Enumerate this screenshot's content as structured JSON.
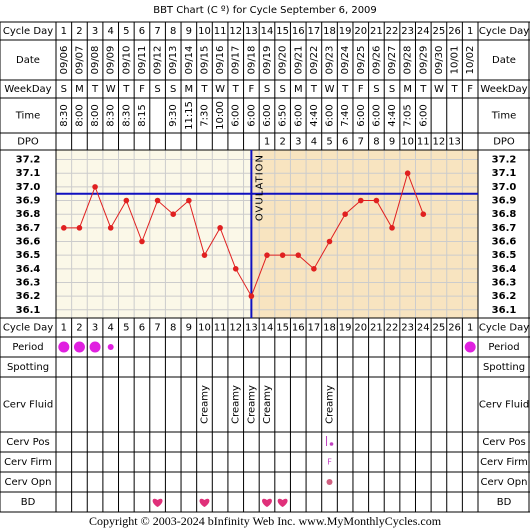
{
  "chart_data": {
    "type": "line",
    "title": "BBT Chart (C º) for Cycle September 6, 2009",
    "row_labels": [
      "Cycle Day",
      "Date",
      "WeekDay",
      "Time",
      "DPO",
      "Cycle Day",
      "Period",
      "Spotting",
      "Cerv Fluid",
      "Cerv Pos",
      "Cerv Firm",
      "Cerv Opn",
      "BD"
    ],
    "categories": [
      1,
      2,
      3,
      4,
      5,
      6,
      7,
      8,
      9,
      10,
      11,
      12,
      13,
      14,
      15,
      16,
      17,
      18,
      19,
      20,
      21,
      22,
      23,
      24,
      25,
      26,
      1
    ],
    "dates": [
      "09/06",
      "09/07",
      "09/08",
      "09/09",
      "09/10",
      "09/11",
      "09/12",
      "09/13",
      "09/14",
      "09/15",
      "09/16",
      "09/17",
      "09/18",
      "09/19",
      "09/20",
      "09/21",
      "09/22",
      "09/23",
      "09/24",
      "09/25",
      "09/26",
      "09/27",
      "09/28",
      "09/29",
      "09/30",
      "10/01",
      "10/02"
    ],
    "weekdays": [
      "S",
      "M",
      "T",
      "W",
      "T",
      "F",
      "S",
      "S",
      "M",
      "T",
      "W",
      "T",
      "F",
      "S",
      "S",
      "M",
      "T",
      "W",
      "T",
      "F",
      "S",
      "S",
      "M",
      "T",
      "W",
      "T",
      "F"
    ],
    "times": [
      "8:30",
      "8:00",
      "8:00",
      "8:30",
      "8:30",
      "8:15",
      null,
      "9:30",
      "11:15",
      "7:30",
      "10:00",
      "6:00",
      "6:00",
      "6:00",
      "6:50",
      "6:00",
      "4:40",
      "6:00",
      "7:40",
      "6:00",
      "6:00",
      "4:40",
      "7:05",
      "6:00",
      null,
      null,
      null
    ],
    "dpo": [
      null,
      null,
      null,
      null,
      null,
      null,
      null,
      null,
      null,
      null,
      null,
      null,
      null,
      1,
      2,
      3,
      4,
      5,
      6,
      7,
      8,
      9,
      10,
      11,
      12,
      13,
      null
    ],
    "values": [
      36.7,
      36.7,
      37.0,
      36.7,
      36.9,
      36.6,
      36.9,
      36.8,
      36.9,
      36.5,
      36.7,
      36.4,
      36.2,
      36.5,
      36.5,
      36.5,
      36.4,
      36.6,
      36.8,
      36.9,
      36.9,
      36.7,
      37.1,
      36.8,
      null,
      null,
      null
    ],
    "color": "#e02020",
    "ylim": [
      36.04,
      37.27
    ],
    "yticks": [
      37.2,
      37.1,
      {
        "value": 37.0,
        "label": "37.0"
      },
      36.9,
      36.8,
      36.7,
      36.6,
      36.5,
      36.4,
      36.3,
      36.2,
      36.1
    ],
    "grid": true,
    "coverline": 36.95,
    "ovulation_day": 13,
    "ovulation_label": "OVULATION",
    "line_color": "#1010c0",
    "period": [
      "heavy",
      "heavy",
      "heavy",
      "light",
      null,
      null,
      null,
      null,
      null,
      null,
      null,
      null,
      null,
      null,
      null,
      null,
      null,
      null,
      null,
      null,
      null,
      null,
      null,
      null,
      null,
      null,
      "heavy"
    ],
    "period_color": "#e020e0",
    "cerv_fluid": [
      null,
      null,
      null,
      null,
      null,
      null,
      null,
      null,
      null,
      "Creamy",
      null,
      "Creamy",
      "Creamy",
      "Creamy",
      null,
      null,
      null,
      "Creamy",
      null,
      null,
      null,
      null,
      null,
      null,
      null,
      null,
      null
    ],
    "cerv_pos_days": [
      18
    ],
    "cerv_firm": [
      null,
      null,
      null,
      null,
      null,
      null,
      null,
      null,
      null,
      null,
      null,
      null,
      null,
      null,
      null,
      null,
      null,
      "F",
      null,
      null,
      null,
      null,
      null,
      null,
      null,
      null,
      null
    ],
    "cerv_opn_days": [
      18
    ],
    "bd_days": [
      7,
      10,
      14,
      15
    ],
    "footer": "Copyright © 2003-2024 bInfinity Web Inc.     www.MyMonthlyCycles.com"
  }
}
